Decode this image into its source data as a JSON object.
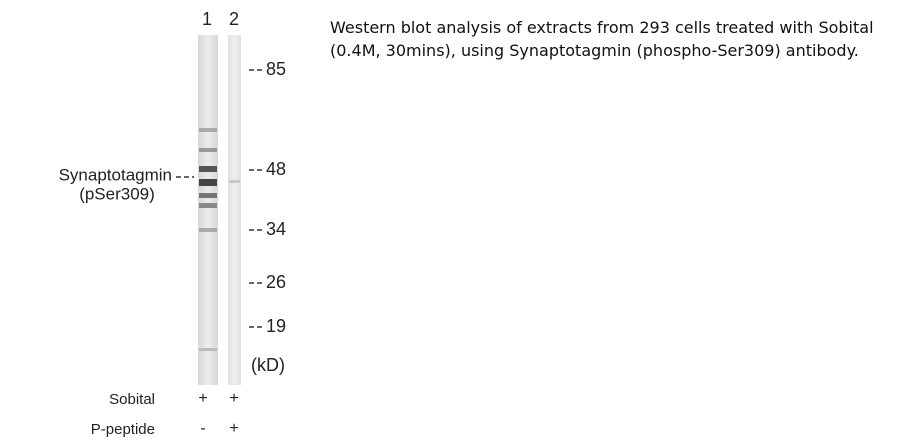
{
  "lanes": [
    "1",
    "2"
  ],
  "markers": {
    "values": [
      85,
      48,
      34,
      26,
      19
    ],
    "unit": "(kD)"
  },
  "protein_label": {
    "line1": "Synaptotagmin",
    "line2": "(pSer309)"
  },
  "treatments": [
    {
      "name": "Sobital",
      "lanes": [
        "+",
        "+"
      ]
    },
    {
      "name": "P-peptide",
      "lanes": [
        "-",
        "+"
      ]
    }
  ],
  "caption": "Western blot analysis of extracts from 293 cells treated with Sobital (0.4M, 30mins), using Synaptotagmin (phospho-Ser309) antibody."
}
